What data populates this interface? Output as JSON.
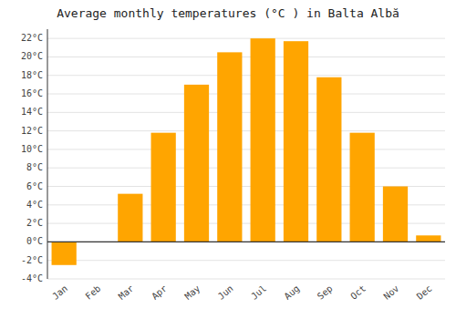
{
  "chart_data": {
    "type": "bar",
    "title": "Average monthly temperatures (°C ) in Balta Albă",
    "categories": [
      "Jan",
      "Feb",
      "Mar",
      "Apr",
      "May",
      "Jun",
      "Jul",
      "Aug",
      "Sep",
      "Oct",
      "Nov",
      "Dec"
    ],
    "values": [
      -2.5,
      0.0,
      5.2,
      11.8,
      17.0,
      20.5,
      22.0,
      21.7,
      17.8,
      11.8,
      6.0,
      0.7
    ],
    "color": "#FFA500",
    "ylim": [
      -4,
      23
    ],
    "yticks": [
      {
        "value": -4,
        "label": "-4°C"
      },
      {
        "value": -2,
        "label": "-2°C"
      },
      {
        "value": 0,
        "label": "0°C"
      },
      {
        "value": 2,
        "label": "2°C"
      },
      {
        "value": 4,
        "label": "4°C"
      },
      {
        "value": 6,
        "label": "6°C"
      },
      {
        "value": 8,
        "label": "8°C"
      },
      {
        "value": 10,
        "label": "10°C"
      },
      {
        "value": 12,
        "label": "12°C"
      },
      {
        "value": 14,
        "label": "14°C"
      },
      {
        "value": 16,
        "label": "16°C"
      },
      {
        "value": 18,
        "label": "18°C"
      },
      {
        "value": 20,
        "label": "20°C"
      },
      {
        "value": 22,
        "label": "22°C"
      }
    ],
    "grid": true
  }
}
